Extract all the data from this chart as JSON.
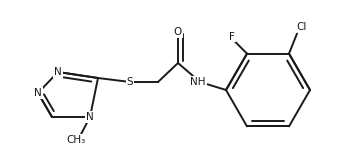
{
  "background": "#ffffff",
  "line_color": "#1a1a1a",
  "line_width": 1.4,
  "font_size": 7.5,
  "xlim": [
    0,
    360
  ],
  "ylim": [
    0,
    160
  ]
}
